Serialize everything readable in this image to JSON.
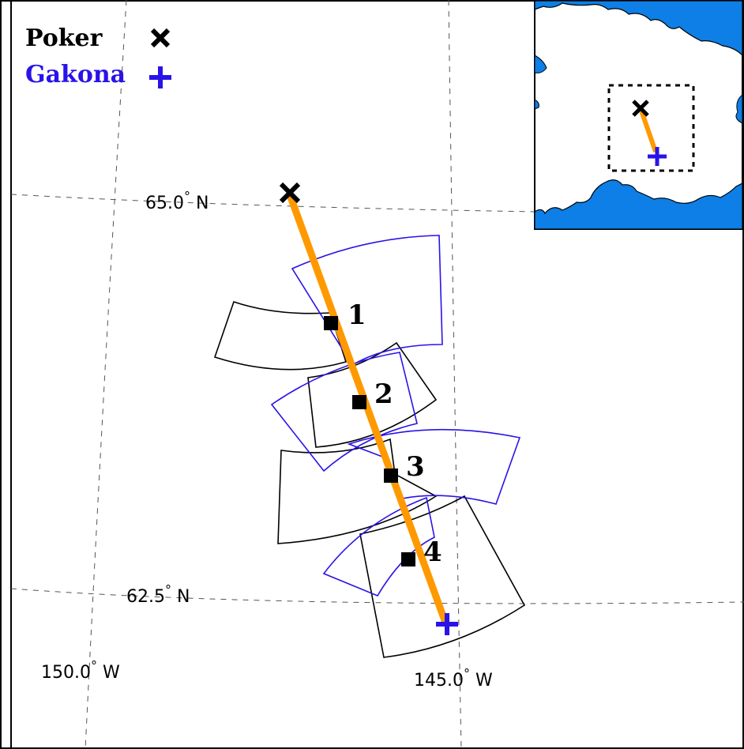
{
  "legend": {
    "poker": {
      "label": "Poker",
      "color": "#000000",
      "symbol": "x-cross-icon"
    },
    "gakona": {
      "label": "Gakona",
      "color": "#2a13e8",
      "symbol": "plus-cross-icon"
    }
  },
  "gridlabels": {
    "lat_65": "65.0",
    "lat_62_5": "62.5",
    "lat_dir": "N",
    "lon_150": "150.0",
    "lon_145": "145.0",
    "lon_dir": "W",
    "degree": "°"
  },
  "beams": [
    {
      "number": "1"
    },
    {
      "number": "2"
    },
    {
      "number": "3"
    },
    {
      "number": "4"
    }
  ],
  "colors": {
    "path": "#ff9900",
    "poker_fan": "#000000",
    "gakona_fan": "#2a13e8",
    "inset_water": "#0d7fe6",
    "grid": "#555555"
  },
  "inset": {
    "name": "alaska-overview-inset"
  }
}
